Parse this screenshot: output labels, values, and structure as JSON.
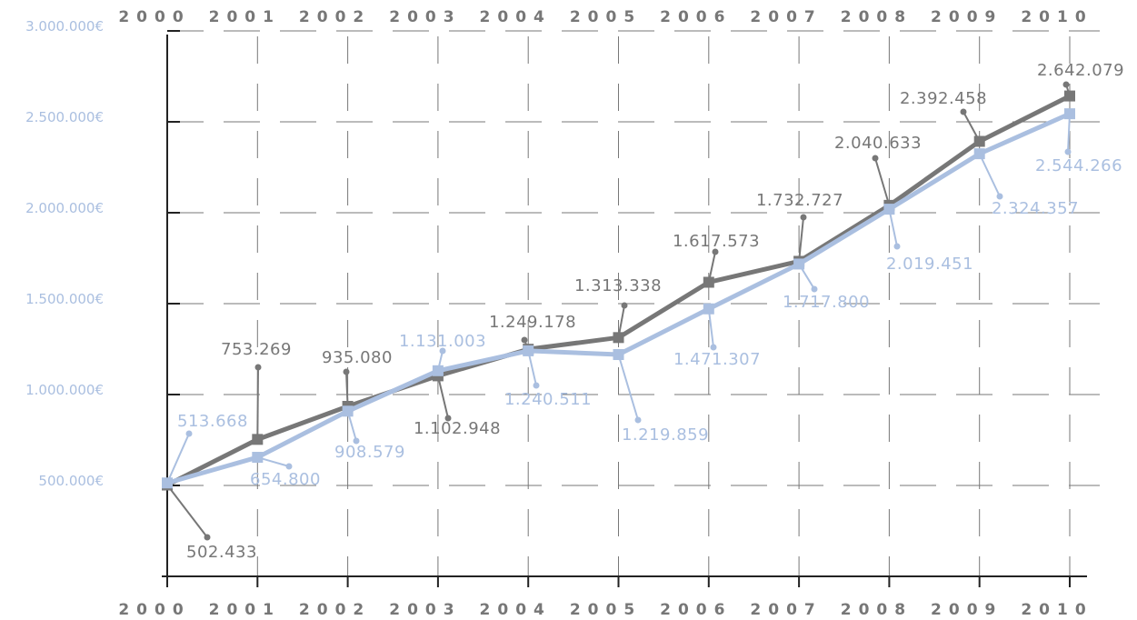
{
  "colors": {
    "dark": "#777777",
    "light": "#aabfe0",
    "axis": "#222222",
    "grid": "#777777"
  },
  "chart_data": {
    "type": "line",
    "title": "",
    "xlabel": "",
    "ylabel": "",
    "x": [
      "2000",
      "2001",
      "2002",
      "2003",
      "2004",
      "2005",
      "2006",
      "2007",
      "2008",
      "2009",
      "2010"
    ],
    "ylim": [
      0,
      3000000
    ],
    "yticks": [
      "500.000€",
      "1.000.000€",
      "1.500.000€",
      "2.000.000€",
      "2.500.000€",
      "3.000.000€"
    ],
    "ytick_values": [
      500000,
      1000000,
      1500000,
      2000000,
      2500000,
      3000000
    ],
    "grid": true,
    "series": [
      {
        "color": "#777777",
        "values": [
          502433,
          753269,
          935080,
          1102948,
          1249178,
          1313338,
          1617573,
          1732727,
          2040633,
          2392458,
          2642079
        ],
        "labels": [
          "502.433",
          "753.269",
          "935.080",
          "1.102.948",
          "1.249.178",
          "1.313.338",
          "1.617.573",
          "1.732.727",
          "2.040.633",
          "2.392.458",
          "2.642.079"
        ]
      },
      {
        "color": "#aabfe0",
        "values": [
          513668,
          654800,
          908579,
          1131003,
          1240511,
          1219859,
          1471307,
          1717800,
          2019451,
          2324357,
          2544266
        ],
        "labels": [
          "513.668",
          "654.800",
          "908.579",
          "1.131.003",
          "1.240.511",
          "1.219.859",
          "1.471.307",
          "1.717.800",
          "2.019.451",
          "2.324.357",
          "2.544.266"
        ]
      }
    ]
  }
}
